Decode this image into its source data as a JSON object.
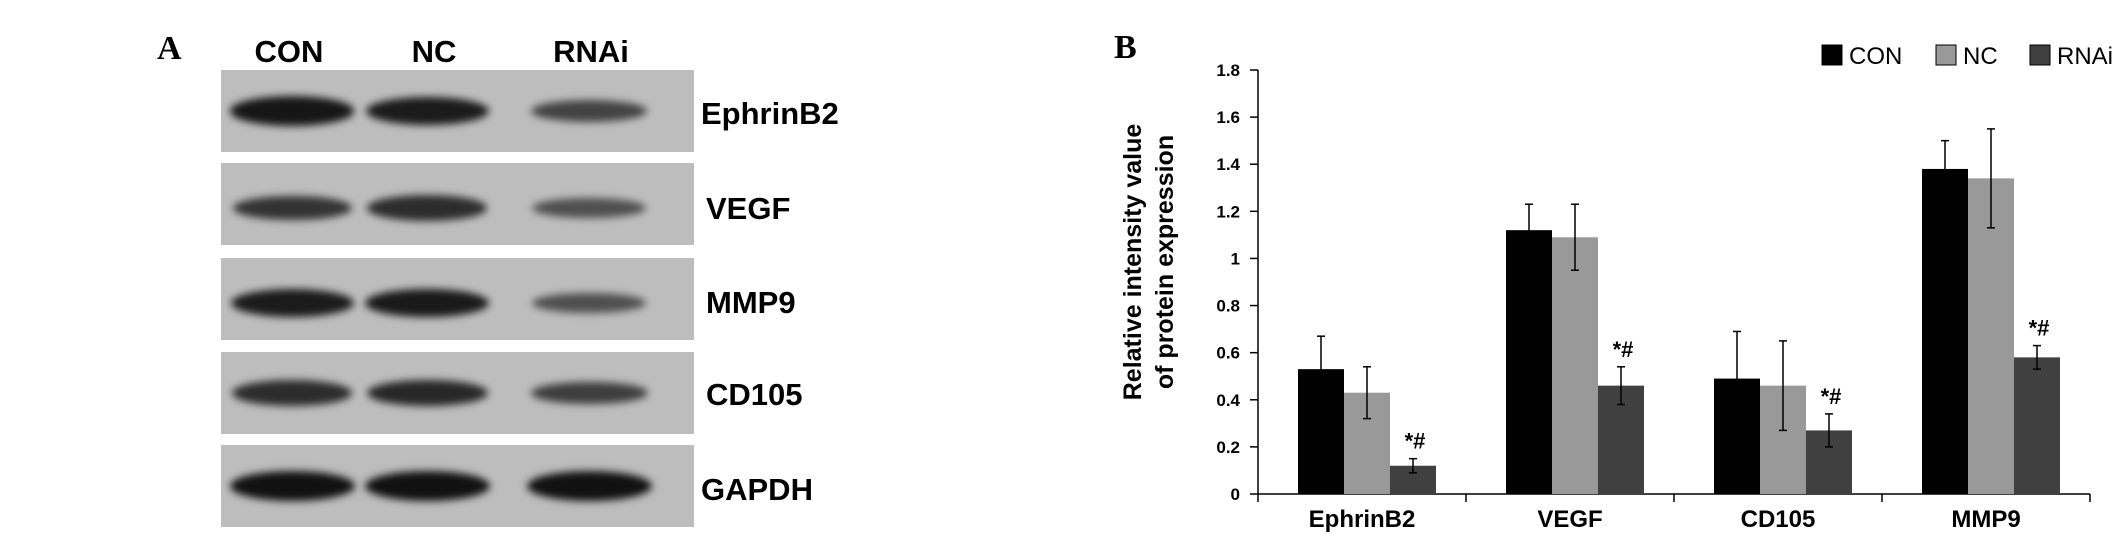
{
  "panel_a": {
    "letter": "A",
    "lanes": [
      "CON",
      "NC",
      "RNAi"
    ],
    "proteins": [
      "EphrinB2",
      "VEGF",
      "MMP9",
      "CD105",
      "GAPDH"
    ],
    "band_intensity": [
      [
        0.95,
        0.9,
        0.55
      ],
      [
        0.7,
        0.75,
        0.45
      ],
      [
        0.9,
        0.92,
        0.45
      ],
      [
        0.75,
        0.8,
        0.6
      ],
      [
        1.0,
        1.0,
        1.0
      ]
    ]
  },
  "chart_data": {
    "panel_letter": "B",
    "type": "bar",
    "categories": [
      "EphrinB2",
      "VEGF",
      "CD105",
      "MMP9"
    ],
    "series": [
      {
        "name": "CON",
        "color": "#000000",
        "values": [
          0.53,
          1.12,
          0.49,
          1.38
        ],
        "errors": [
          0.14,
          0.11,
          0.2,
          0.12
        ]
      },
      {
        "name": "NC",
        "color": "#999999",
        "values": [
          0.43,
          1.09,
          0.46,
          1.34
        ],
        "errors": [
          0.11,
          0.14,
          0.19,
          0.21
        ]
      },
      {
        "name": "RNAi",
        "color": "#404040",
        "values": [
          0.12,
          0.46,
          0.27,
          0.58
        ],
        "errors": [
          0.03,
          0.08,
          0.07,
          0.05
        ]
      }
    ],
    "annotations": [
      "*#",
      "*#",
      "*#",
      "*#"
    ],
    "ylabel_lines": [
      "Relative intensity value",
      "of protein expression"
    ],
    "ylim": [
      0,
      1.8
    ],
    "yticks": [
      0,
      0.2,
      0.4,
      0.6,
      0.8,
      1,
      1.2,
      1.4,
      1.6,
      1.8
    ],
    "ytick_labels": [
      "0",
      "0.2",
      "0.4",
      "0.6",
      "0.8",
      "1",
      "1.2",
      "1.4",
      "1.6",
      "1.8"
    ],
    "grid": false,
    "legend": "top-right"
  }
}
